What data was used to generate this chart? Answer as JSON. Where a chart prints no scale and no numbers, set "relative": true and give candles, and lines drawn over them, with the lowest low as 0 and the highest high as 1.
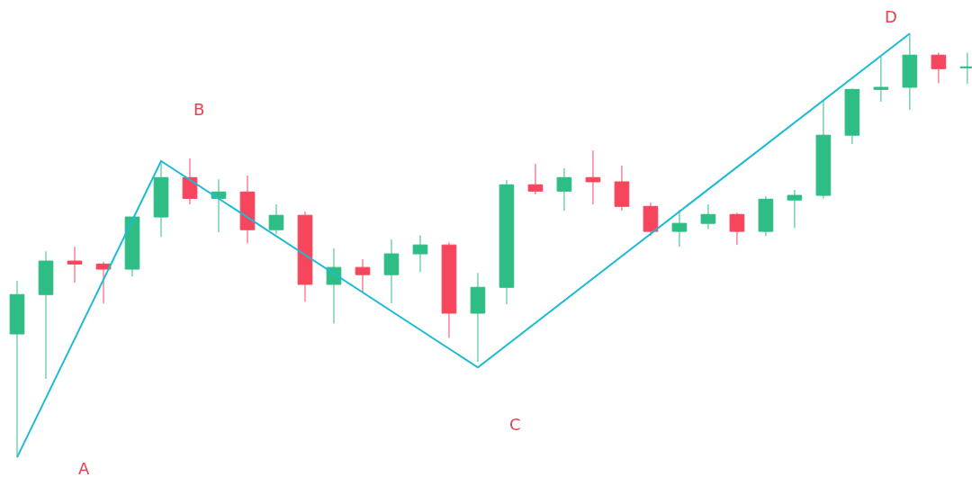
{
  "chart_data": {
    "type": "candlestick",
    "relative": true,
    "categories": [
      null,
      null,
      null,
      null,
      null,
      null,
      null,
      null,
      null,
      null,
      null,
      null,
      null,
      null,
      null,
      null,
      null,
      null,
      null,
      null,
      null,
      null,
      null,
      null,
      null,
      null,
      null,
      null,
      null,
      null,
      null,
      null,
      null,
      null
    ],
    "ohlc": [
      [
        0.291,
        0.416,
        0,
        0.384
      ],
      [
        0.384,
        0.486,
        0.185,
        0.463
      ],
      [
        0.463,
        0.497,
        0.412,
        0.456
      ],
      [
        0.456,
        0.461,
        0.363,
        0.444
      ],
      [
        0.444,
        0.567,
        0.427,
        0.567
      ],
      [
        0.567,
        0.699,
        0.52,
        0.66
      ],
      [
        0.66,
        0.705,
        0.597,
        0.611
      ],
      [
        0.611,
        0.656,
        0.531,
        0.626
      ],
      [
        0.626,
        0.665,
        0.505,
        0.537
      ],
      [
        0.537,
        0.597,
        0.527,
        0.571
      ],
      [
        0.571,
        0.58,
        0.367,
        0.408
      ],
      [
        0.408,
        0.493,
        0.316,
        0.448
      ],
      [
        0.448,
        0.467,
        0.391,
        0.431
      ],
      [
        0.431,
        0.514,
        0.363,
        0.48
      ],
      [
        0.48,
        0.524,
        0.437,
        0.501
      ],
      [
        0.501,
        0.507,
        0.282,
        0.34
      ],
      [
        0.34,
        0.435,
        0.225,
        0.401
      ],
      [
        0.401,
        0.654,
        0.361,
        0.643
      ],
      [
        0.643,
        0.692,
        0.62,
        0.628
      ],
      [
        0.628,
        0.682,
        0.582,
        0.66
      ],
      [
        0.66,
        0.724,
        0.597,
        0.65
      ],
      [
        0.65,
        0.688,
        0.582,
        0.592
      ],
      [
        0.592,
        0.601,
        0.522,
        0.533
      ],
      [
        0.533,
        0.584,
        0.497,
        0.552
      ],
      [
        0.552,
        0.597,
        0.539,
        0.573
      ],
      [
        0.573,
        0.577,
        0.501,
        0.533
      ],
      [
        0.533,
        0.616,
        0.522,
        0.609
      ],
      [
        0.607,
        0.631,
        0.541,
        0.618
      ],
      [
        0.618,
        0.843,
        0.611,
        0.76
      ],
      [
        0.76,
        0.87,
        0.739,
        0.868
      ],
      [
        0.868,
        0.945,
        0.839,
        0.873
      ],
      [
        0.873,
        1,
        0.82,
        0.949
      ],
      [
        0.949,
        0.955,
        0.883,
        0.917
      ],
      [
        0.919,
        0.955,
        0.881,
        0.921
      ]
    ],
    "colors": [
      "#2ebd85",
      "#2ebd85",
      "#f6465d",
      "#f6465d",
      "#2ebd85",
      "#2ebd85",
      "#f6465d",
      "#2ebd85",
      "#f6465d",
      "#2ebd85",
      "#f6465d",
      "#2ebd85",
      "#f6465d",
      "#2ebd85",
      "#2ebd85",
      "#f6465d",
      "#2ebd85",
      "#2ebd85",
      "#f6465d",
      "#2ebd85",
      "#f6465d",
      "#f6465d",
      "#f6465d",
      "#2ebd85",
      "#2ebd85",
      "#f6465d",
      "#2ebd85",
      "#2ebd85",
      "#2ebd85",
      "#2ebd85",
      "#2ebd85",
      "#2ebd85",
      "#f6465d",
      "#2ebd85"
    ],
    "series": [
      {
        "type": "line",
        "color": "#1cbcd4",
        "values": [
          0,
          null,
          null,
          null,
          null,
          0.699,
          null,
          null,
          null,
          null,
          null,
          null,
          null,
          null,
          null,
          null,
          0.212,
          null,
          null,
          null,
          null,
          null,
          null,
          null,
          null,
          null,
          null,
          null,
          null,
          null,
          null,
          1,
          null,
          null
        ]
      }
    ],
    "annotations": [
      "A",
      "B",
      "C",
      "D"
    ]
  }
}
